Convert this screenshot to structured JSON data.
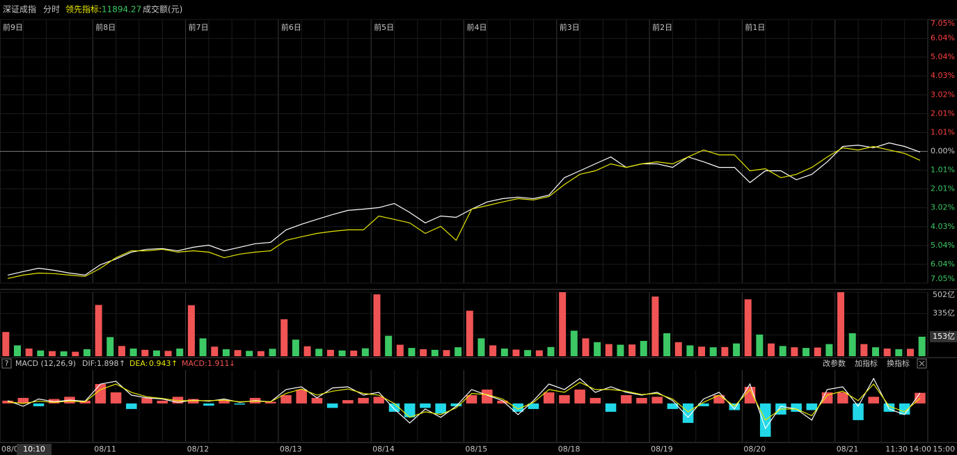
{
  "header": {
    "index_name": "深证成指",
    "mode": "分时",
    "indicator_label": "领先指标:",
    "indicator_value": 11894.27,
    "volume_label": "成交额(元)"
  },
  "macd_header": {
    "help": "?",
    "title": "MACD (12,26,9)",
    "dif_label": "DIF:",
    "dif_arrow": "↑",
    "dea_label": "DEA:",
    "dea_arrow": "↑",
    "macd_label": "MACD:",
    "macd_arrow": "↓"
  },
  "toolbar": [
    "改参数",
    "加指标",
    "换指标"
  ],
  "x_axis": {
    "labels": [
      "08/0",
      "08/11",
      "08/12",
      "08/13",
      "08/14",
      "08/15",
      "08/18",
      "08/19",
      "08/20",
      "08/21"
    ],
    "crosshair_time": "10:10",
    "today_times": [
      "11:30",
      "14:00",
      "15:00"
    ]
  },
  "chart_data": [
    {
      "type": "line",
      "day_labels": [
        "前9日",
        "前8日",
        "前7日",
        "前6日",
        "前5日",
        "前4日",
        "前3日",
        "前2日",
        "前1日"
      ],
      "ylim": [
        -7.05,
        7.05
      ],
      "yticks": [
        {
          "value": 7.05,
          "label": "7.05%"
        },
        {
          "value": 6.04,
          "label": "6.04%"
        },
        {
          "value": 5.04,
          "label": "5.04%"
        },
        {
          "value": 4.03,
          "label": "4.03%"
        },
        {
          "value": 3.02,
          "label": "3.02%"
        },
        {
          "value": 2.01,
          "label": "2.01%"
        },
        {
          "value": 1.01,
          "label": "1.01%"
        },
        {
          "value": 0,
          "label": "0.00%"
        },
        {
          "value": -1.01,
          "label": "1.01%"
        },
        {
          "value": -2.01,
          "label": "2.01%"
        },
        {
          "value": -3.02,
          "label": "3.02%"
        },
        {
          "value": -4.03,
          "label": "4.03%"
        },
        {
          "value": -5.04,
          "label": "5.04%"
        },
        {
          "value": -6.04,
          "label": "6.04%"
        },
        {
          "value": -7.05,
          "label": "7.05%"
        }
      ],
      "grid": true,
      "series": [
        {
          "color": "#ffffff",
          "values": [
            -6.62,
            -6.43,
            -6.25,
            -6.36,
            -6.51,
            -6.62,
            -6.06,
            -5.76,
            -5.39,
            -5.24,
            -5.2,
            -5.32,
            -5.13,
            -5.02,
            -5.32,
            -5.13,
            -4.94,
            -4.87,
            -4.2,
            -3.9,
            -3.64,
            -3.38,
            -3.16,
            -3.09,
            -3.01,
            -2.79,
            -3.27,
            -3.83,
            -3.46,
            -3.53,
            -3.09,
            -2.71,
            -2.53,
            -2.45,
            -2.53,
            -2.34,
            -1.41,
            -1.04,
            -0.67,
            -0.3,
            -0.86,
            -0.67,
            -0.67,
            -0.86,
            -0.3,
            -0.56,
            -0.86,
            -0.86,
            -1.67,
            -1.04,
            -1.04,
            -1.52,
            -1.23,
            -0.56,
            0.26,
            0.33,
            0.19,
            0.45,
            0.26,
            -0.04
          ]
        },
        {
          "color": "#e8e800",
          "values": [
            -6.8,
            -6.62,
            -6.51,
            -6.54,
            -6.62,
            -6.69,
            -6.25,
            -5.69,
            -5.32,
            -5.32,
            -5.24,
            -5.39,
            -5.32,
            -5.39,
            -5.69,
            -5.5,
            -5.39,
            -5.32,
            -4.76,
            -4.57,
            -4.39,
            -4.28,
            -4.2,
            -4.2,
            -3.46,
            -3.64,
            -3.83,
            -4.39,
            -4.01,
            -4.76,
            -3.09,
            -2.9,
            -2.71,
            -2.53,
            -2.6,
            -2.42,
            -1.78,
            -1.23,
            -1.04,
            -0.67,
            -0.86,
            -0.67,
            -0.56,
            -0.67,
            -0.3,
            0.07,
            -0.19,
            -0.19,
            -1.04,
            -0.93,
            -1.41,
            -1.23,
            -0.86,
            -0.3,
            0.19,
            0.07,
            0.26,
            0.07,
            -0.11,
            -0.48
          ]
        }
      ]
    },
    {
      "type": "bar",
      "ylim": [
        0,
        502
      ],
      "yticks": [
        {
          "value": 502,
          "label": "502亿"
        },
        {
          "value": 335,
          "label": "335亿"
        },
        {
          "value": 167,
          "label": "167亿"
        }
      ],
      "current": {
        "value": 153,
        "label": "153亿"
      },
      "colors": [
        "#f05454",
        "#3cc864"
      ],
      "values": [
        190,
        85,
        60,
        45,
        40,
        38,
        35,
        55,
        402,
        150,
        80,
        60,
        50,
        45,
        42,
        60,
        400,
        140,
        75,
        55,
        48,
        42,
        40,
        58,
        290,
        130,
        78,
        58,
        50,
        45,
        44,
        62,
        485,
        160,
        90,
        65,
        55,
        50,
        48,
        70,
        357,
        140,
        85,
        60,
        52,
        48,
        46,
        72,
        502,
        200,
        140,
        110,
        95,
        90,
        92,
        120,
        468,
        180,
        110,
        85,
        75,
        70,
        72,
        100,
        446,
        170,
        100,
        80,
        70,
        65,
        68,
        95,
        502,
        180,
        95,
        70,
        60,
        55,
        58,
        153
      ]
    },
    {
      "type": "macd",
      "ylim": [
        -6.9,
        6
      ],
      "series": [
        {
          "color": "#ffffff",
          "values": [
            0.5,
            -0.5,
            0.8,
            0.3,
            0.6,
            0.4,
            3.5,
            4.0,
            1.5,
            1.0,
            0.8,
            0.2,
            0.6,
            0.4,
            0.8,
            0.2,
            0.5,
            0.3,
            2.5,
            3.0,
            1.0,
            2.8,
            3.0,
            1.5,
            2.0,
            -1.0,
            -3.5,
            -1.0,
            -2.5,
            -0.5,
            2.5,
            1.5,
            0.5,
            -2.0,
            0.5,
            3.5,
            2.5,
            4.5,
            2.0,
            3.0,
            2.0,
            1.5,
            2.0,
            0.5,
            -2.5,
            0.8,
            2.0,
            -1.0,
            3.5,
            -4.5,
            -0.5,
            -1.0,
            -3.0,
            2.5,
            3.0,
            -0.5,
            4.5,
            -1.0,
            -2.0,
            1.898
          ]
        },
        {
          "color": "#e8e800",
          "values": [
            0.3,
            0.0,
            0.4,
            0.2,
            0.4,
            0.3,
            2.5,
            3.5,
            2.0,
            1.2,
            0.9,
            0.5,
            0.5,
            0.5,
            0.6,
            0.3,
            0.4,
            0.3,
            1.8,
            2.6,
            1.5,
            2.2,
            2.6,
            1.8,
            1.5,
            0.0,
            -2.5,
            -1.5,
            -2.0,
            -0.8,
            1.8,
            1.6,
            0.8,
            -1.0,
            0.2,
            2.5,
            2.0,
            3.8,
            2.5,
            2.5,
            2.2,
            1.6,
            1.8,
            0.8,
            -1.5,
            0.2,
            1.5,
            -0.5,
            2.5,
            -3.0,
            -1.0,
            -1.0,
            -2.2,
            1.5,
            2.2,
            0.5,
            3.5,
            -0.5,
            -1.5,
            0.943
          ]
        }
      ],
      "histogram": {
        "colors": [
          "#f05454",
          "#22d8e8"
        ],
        "values": [
          0.5,
          1.0,
          -0.5,
          0.8,
          1.2,
          0.5,
          3.5,
          2.0,
          -1.0,
          1.0,
          0.5,
          1.2,
          0.8,
          -0.4,
          0.6,
          -0.2,
          1.0,
          0.3,
          1.5,
          2.5,
          1.0,
          -0.8,
          0.6,
          1.0,
          1.2,
          -1.5,
          -2.5,
          -0.8,
          -1.8,
          -0.5,
          1.5,
          2.5,
          0.5,
          -1.5,
          -1.0,
          2.0,
          1.5,
          2.5,
          1.0,
          -1.5,
          1.5,
          1.0,
          1.2,
          -1.0,
          -3.5,
          -0.5,
          1.5,
          -1.2,
          3.0,
          -6.0,
          -2.0,
          -1.5,
          -1.2,
          2.0,
          2.0,
          -3.0,
          1.2,
          -1.5,
          -2.0,
          1.911
        ]
      }
    }
  ]
}
